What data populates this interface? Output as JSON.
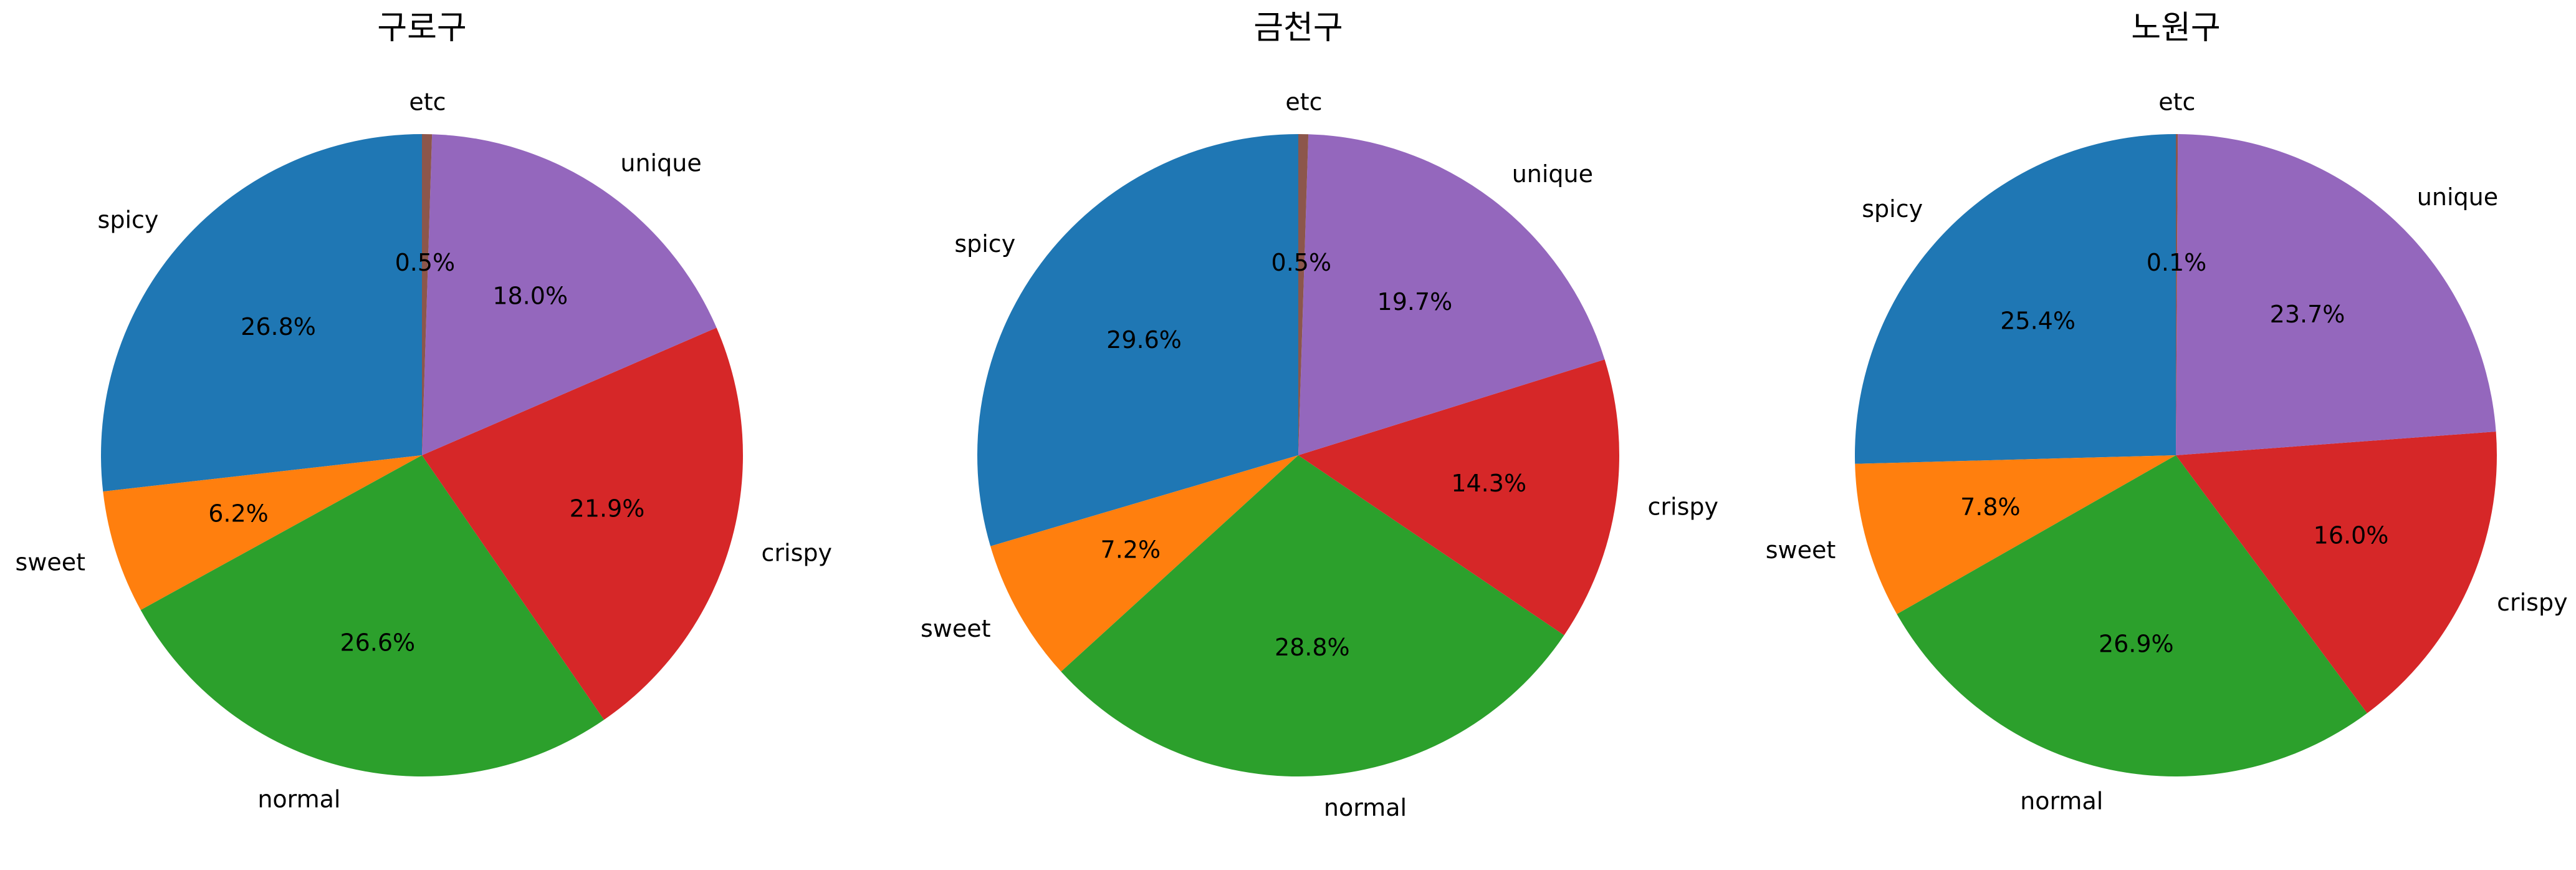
{
  "figure": {
    "colors": {
      "spicy": "#1f77b4",
      "sweet": "#ff7f0e",
      "normal": "#2ca02c",
      "crispy": "#d62728",
      "unique": "#9467bd",
      "etc": "#8c564b"
    }
  },
  "chart_data": [
    {
      "type": "pie",
      "title": "구로구",
      "labels": [
        "spicy",
        "sweet",
        "normal",
        "crispy",
        "unique",
        "etc"
      ],
      "values": [
        26.8,
        6.2,
        26.6,
        21.9,
        18.0,
        0.5
      ],
      "value_labels": [
        "26.8%",
        "6.2%",
        "26.6%",
        "21.9%",
        "18.0%",
        "0.5%"
      ],
      "start_angle_deg": 90,
      "direction": "counterclockwise"
    },
    {
      "type": "pie",
      "title": "금천구",
      "labels": [
        "spicy",
        "sweet",
        "normal",
        "crispy",
        "unique",
        "etc"
      ],
      "values": [
        29.6,
        7.2,
        28.8,
        14.3,
        19.7,
        0.5
      ],
      "value_labels": [
        "29.6%",
        "7.2%",
        "28.8%",
        "14.3%",
        "19.7%",
        "0.5%"
      ],
      "start_angle_deg": 90,
      "direction": "counterclockwise"
    },
    {
      "type": "pie",
      "title": "노원구",
      "labels": [
        "spicy",
        "sweet",
        "normal",
        "crispy",
        "unique",
        "etc"
      ],
      "values": [
        25.4,
        7.8,
        26.9,
        16.0,
        23.7,
        0.1
      ],
      "value_labels": [
        "25.4%",
        "7.8%",
        "26.9%",
        "16.0%",
        "23.7%",
        "0.1%"
      ],
      "start_angle_deg": 90,
      "direction": "counterclockwise"
    }
  ]
}
